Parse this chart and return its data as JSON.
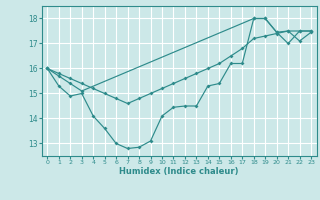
{
  "xlabel": "Humidex (Indice chaleur)",
  "bg_color": "#cce8e8",
  "grid_color": "#ffffff",
  "line_color": "#2e8b8b",
  "xlim": [
    -0.5,
    23.5
  ],
  "ylim": [
    12.5,
    18.5
  ],
  "yticks": [
    13,
    14,
    15,
    16,
    17,
    18
  ],
  "xticks": [
    0,
    1,
    2,
    3,
    4,
    5,
    6,
    7,
    8,
    9,
    10,
    11,
    12,
    13,
    14,
    15,
    16,
    17,
    18,
    19,
    20,
    21,
    22,
    23
  ],
  "line1_x": [
    0,
    1,
    2,
    3,
    4,
    5,
    6,
    7,
    8,
    9,
    10,
    11,
    12,
    13,
    14,
    15,
    16,
    17,
    18,
    19,
    20,
    21,
    22,
    23
  ],
  "line1_y": [
    16.0,
    15.3,
    14.9,
    15.0,
    14.1,
    13.6,
    13.0,
    12.8,
    12.85,
    13.1,
    14.1,
    14.45,
    14.5,
    14.5,
    15.3,
    15.4,
    16.2,
    16.2,
    18.0,
    18.0,
    17.45,
    17.0,
    17.5,
    17.5
  ],
  "line2_x": [
    0,
    1,
    2,
    3,
    18,
    19,
    20,
    21,
    22,
    23
  ],
  "line2_y": [
    16.0,
    15.7,
    15.4,
    15.1,
    18.0,
    18.0,
    17.45,
    17.5,
    17.1,
    17.45
  ],
  "line3_x": [
    0,
    1,
    2,
    3,
    4,
    5,
    6,
    7,
    8,
    9,
    10,
    11,
    12,
    13,
    14,
    15,
    16,
    17,
    18,
    19,
    20,
    21,
    22,
    23
  ],
  "line3_y": [
    16.0,
    15.8,
    15.6,
    15.4,
    15.2,
    15.0,
    14.8,
    14.6,
    14.8,
    15.0,
    15.2,
    15.4,
    15.6,
    15.8,
    16.0,
    16.2,
    16.5,
    16.8,
    17.2,
    17.3,
    17.4,
    17.5,
    17.5,
    17.5
  ]
}
